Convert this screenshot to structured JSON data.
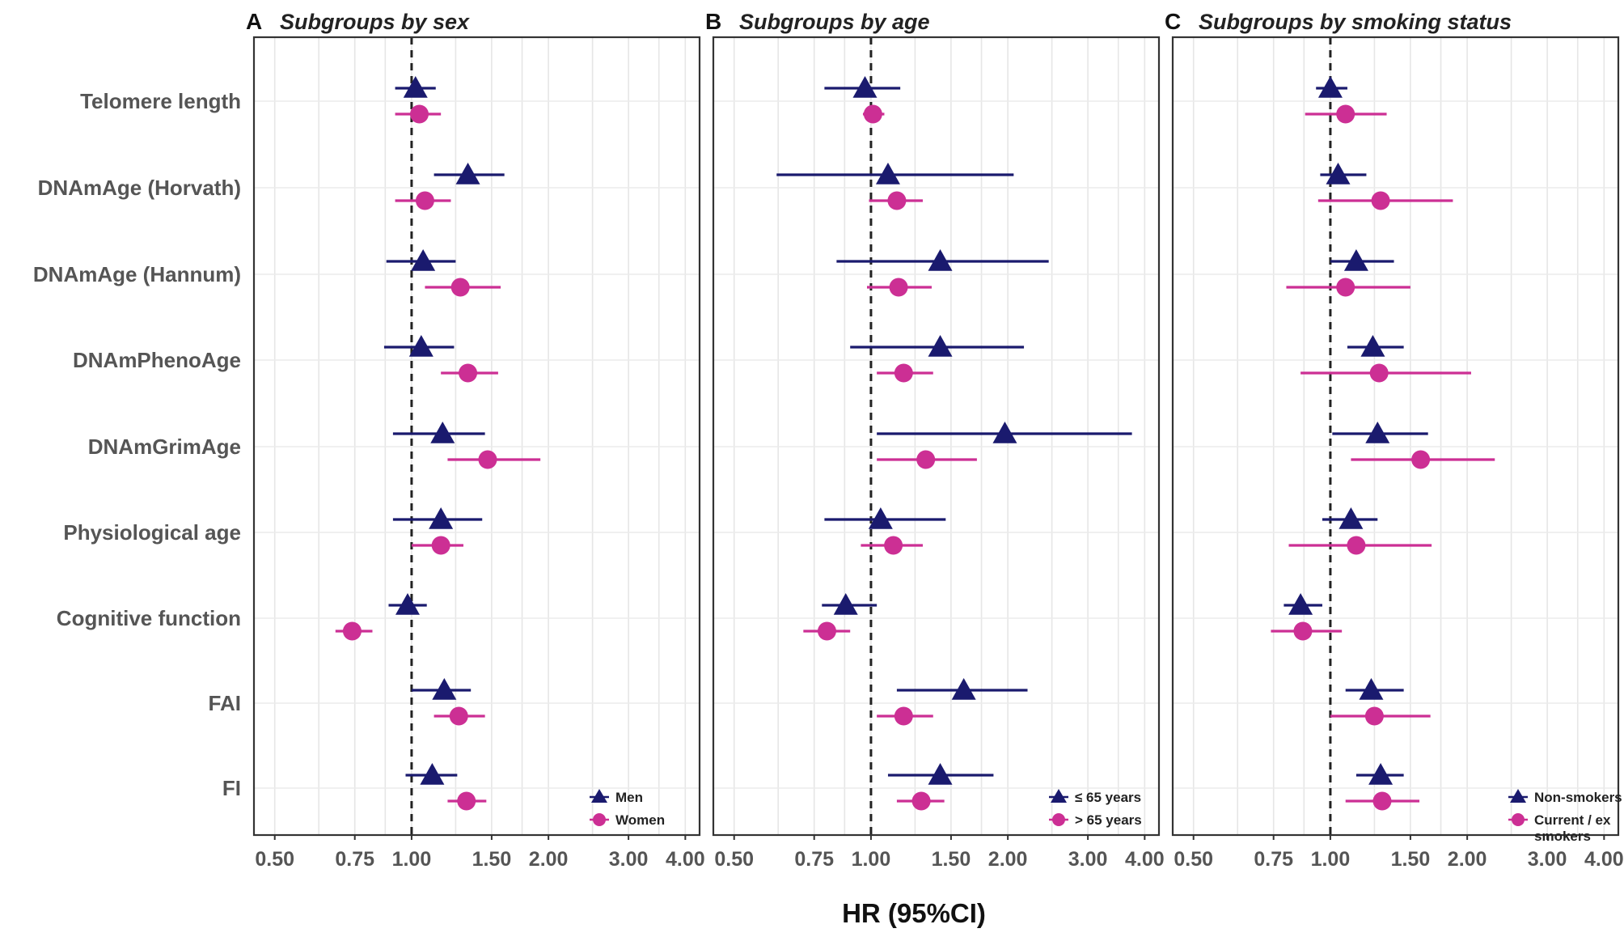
{
  "chart_data": {
    "type": "forest",
    "xlabel": "HR (95%CI)",
    "x_scale": "log",
    "xlim": [
      0.45,
      4.3
    ],
    "xticks": [
      0.5,
      0.75,
      1.0,
      1.5,
      2.0,
      3.0,
      4.0
    ],
    "xtick_labels": [
      "0.50",
      "0.75",
      "1.00",
      "1.50",
      "2.00",
      "3.00",
      "4.00"
    ],
    "reference_line": 1.0,
    "rows": [
      "Telomere length",
      "DNAmAge (Horvath)",
      "DNAmAge (Hannum)",
      "DNAmPhenoAge",
      "DNAmGrimAge",
      "Physiological age",
      "Cognitive function",
      "FAI",
      "FI"
    ],
    "panels": [
      {
        "letter": "A",
        "title": "Subgroups by sex",
        "legend_position": "bottom-right",
        "series": [
          {
            "name": "Men",
            "marker": "triangle",
            "color": "#1a1a6e",
            "hr": [
              1.02,
              1.33,
              1.06,
              1.05,
              1.17,
              1.16,
              0.98,
              1.18,
              1.11
            ],
            "lower": [
              0.92,
              1.12,
              0.88,
              0.87,
              0.91,
              0.91,
              0.89,
              1.0,
              0.97
            ],
            "upper": [
              1.13,
              1.6,
              1.25,
              1.24,
              1.45,
              1.43,
              1.08,
              1.35,
              1.26
            ]
          },
          {
            "name": "Women",
            "marker": "circle",
            "color": "#cc2f94",
            "hr": [
              1.04,
              1.07,
              1.28,
              1.33,
              1.47,
              1.16,
              0.74,
              1.27,
              1.32
            ],
            "lower": [
              0.92,
              0.92,
              1.07,
              1.16,
              1.2,
              1.0,
              0.68,
              1.12,
              1.2
            ],
            "upper": [
              1.16,
              1.22,
              1.57,
              1.55,
              1.92,
              1.3,
              0.82,
              1.45,
              1.46
            ]
          }
        ]
      },
      {
        "letter": "B",
        "title": "Subgroups by age",
        "legend_position": "bottom-right",
        "series": [
          {
            "name": "≤ 65 years",
            "marker": "triangle",
            "color": "#1a1a6e",
            "hr": [
              0.97,
              1.09,
              1.42,
              1.42,
              1.97,
              1.05,
              0.88,
              1.6,
              1.42
            ],
            "lower": [
              0.79,
              0.62,
              0.84,
              0.9,
              1.03,
              0.79,
              0.78,
              1.14,
              1.09
            ],
            "upper": [
              1.16,
              2.06,
              2.46,
              2.17,
              3.75,
              1.46,
              1.03,
              2.21,
              1.86
            ]
          },
          {
            "name": "> 65 years",
            "marker": "circle",
            "color": "#cc2f94",
            "hr": [
              1.01,
              1.14,
              1.15,
              1.18,
              1.32,
              1.12,
              0.8,
              1.18,
              1.29
            ],
            "lower": [
              0.96,
              0.99,
              0.98,
              1.03,
              1.03,
              0.95,
              0.71,
              1.03,
              1.14
            ],
            "upper": [
              1.07,
              1.3,
              1.36,
              1.37,
              1.71,
              1.3,
              0.9,
              1.37,
              1.45
            ]
          }
        ]
      },
      {
        "letter": "C",
        "title": "Subgroups by smoking status",
        "legend_position": "bottom-right",
        "series": [
          {
            "name": "Non-smokers",
            "marker": "triangle",
            "color": "#1a1a6e",
            "hr": [
              1.0,
              1.04,
              1.14,
              1.24,
              1.27,
              1.11,
              0.86,
              1.23,
              1.29
            ],
            "lower": [
              0.93,
              0.95,
              1.0,
              1.09,
              1.01,
              0.96,
              0.79,
              1.08,
              1.14
            ],
            "upper": [
              1.09,
              1.2,
              1.38,
              1.45,
              1.64,
              1.27,
              0.96,
              1.45,
              1.45
            ]
          },
          {
            "name": "Current / ex smokers",
            "marker": "circle",
            "color": "#cc2f94",
            "hr": [
              1.08,
              1.29,
              1.08,
              1.28,
              1.58,
              1.14,
              0.87,
              1.25,
              1.3
            ],
            "lower": [
              0.88,
              0.94,
              0.8,
              0.86,
              1.11,
              0.81,
              0.74,
              1.0,
              1.08
            ],
            "upper": [
              1.33,
              1.86,
              1.5,
              2.04,
              2.3,
              1.67,
              1.06,
              1.66,
              1.57
            ]
          }
        ]
      }
    ]
  }
}
